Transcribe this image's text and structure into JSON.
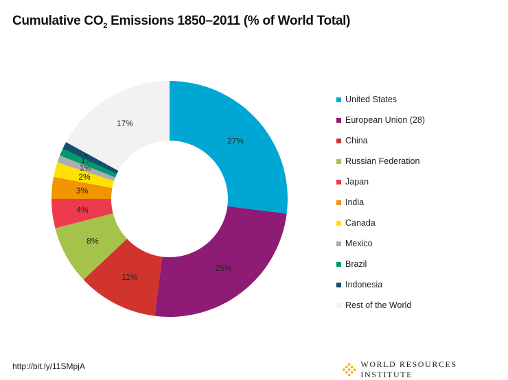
{
  "title_prefix": "Cumulative CO",
  "title_sub": "2",
  "title_suffix": " Emissions 1850–2011 (% of World Total)",
  "source_link": "http://bit.ly/11SMpjA",
  "logo_text": "WORLD RESOURCES INSTITUTE",
  "chart_data": {
    "type": "pie",
    "variant": "donut",
    "title": "Cumulative CO2 Emissions 1850–2011 (% of World Total)",
    "legend_position": "right",
    "categories": [
      "United States",
      "European Union (28)",
      "China",
      "Russian Federation",
      "Japan",
      "India",
      "Canada",
      "Mexico",
      "Brazil",
      "Indonesia",
      "Rest of the World"
    ],
    "values": [
      27,
      25,
      11,
      8,
      4,
      3,
      2,
      1,
      1,
      1,
      17
    ],
    "labels": [
      "27%",
      "25%",
      "11%",
      "8%",
      "4%",
      "3%",
      "2%",
      "1%",
      "1%",
      "1%",
      "17%"
    ],
    "colors": [
      "#00A7D4",
      "#8E1B74",
      "#D0342C",
      "#A5C24B",
      "#EE3A4D",
      "#F09400",
      "#FFE100",
      "#ADADAD",
      "#009A6E",
      "#134F6E",
      "#F2F2F2"
    ]
  }
}
